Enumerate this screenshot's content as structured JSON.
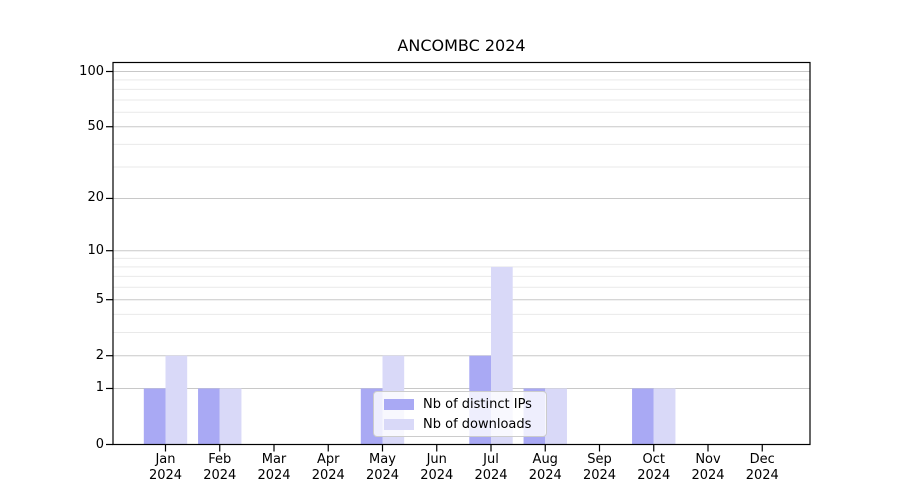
{
  "chart_data": {
    "type": "bar",
    "title": "ANCOMBC 2024",
    "categories": [
      "Jan",
      "Feb",
      "Mar",
      "Apr",
      "May",
      "Jun",
      "Jul",
      "Aug",
      "Sep",
      "Oct",
      "Nov",
      "Dec"
    ],
    "x_year_label": "2024",
    "series": [
      {
        "name": "Nb of distinct IPs",
        "color": "#a9a9f4",
        "values": [
          1,
          1,
          0,
          0,
          1,
          0,
          2,
          1,
          0,
          1,
          0,
          0
        ]
      },
      {
        "name": "Nb of downloads",
        "color": "#d9d9f8",
        "values": [
          2,
          1,
          0,
          0,
          2,
          0,
          8,
          1,
          0,
          1,
          0,
          0
        ]
      }
    ],
    "yscale": "log1p",
    "yticks": [
      0,
      1,
      2,
      5,
      10,
      20,
      50,
      100
    ],
    "minor_gridlines": [
      3,
      4,
      6,
      7,
      8,
      9,
      30,
      40,
      60,
      70,
      80,
      90
    ],
    "ylim": [
      0,
      112
    ],
    "xlabel": "",
    "ylabel": "",
    "grid": true,
    "legend_location": "lower center"
  },
  "colors": {
    "background": "#ffffff",
    "major_grid": "#c8c8c8",
    "minor_grid": "#e9e9e9",
    "axis": "#000000",
    "text": "#000000",
    "legend_border": "#cccccc"
  }
}
